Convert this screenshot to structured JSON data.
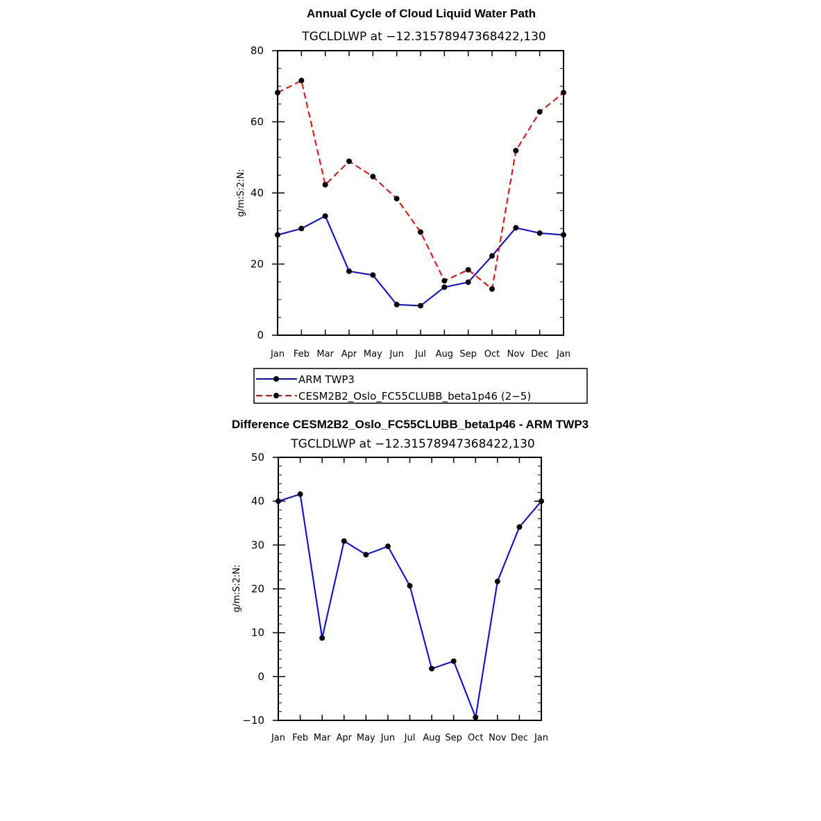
{
  "chart_data": [
    {
      "type": "line",
      "title": "Annual Cycle of Cloud Liquid Water Path",
      "subtitle": "TGCLDLWP at −12.31578947368422,130",
      "ylabel": "g/m:S:2:N:",
      "xlabel": "",
      "categories": [
        "Jan",
        "Feb",
        "Mar",
        "Apr",
        "May",
        "Jun",
        "Jul",
        "Aug",
        "Sep",
        "Oct",
        "Nov",
        "Dec",
        "Jan"
      ],
      "yticks": [
        "0",
        "20",
        "40",
        "60",
        "80"
      ],
      "ylim": [
        0,
        80
      ],
      "series": [
        {
          "name": "ARM TWP3",
          "color": "#0000ff",
          "dash": "solid",
          "values": [
            28.2,
            30.0,
            33.5,
            18.0,
            16.9,
            8.6,
            8.3,
            13.5,
            14.9,
            22.3,
            30.2,
            28.7,
            28.2
          ]
        },
        {
          "name": "CESM2B2_Oslo_FC55CLUBB_beta1p46 (2−5)",
          "color": "#ff0000",
          "dash": "dashed",
          "values": [
            68.2,
            71.6,
            42.3,
            48.9,
            44.6,
            38.4,
            29.0,
            15.3,
            18.4,
            13.0,
            51.9,
            62.8,
            68.2
          ]
        }
      ],
      "legend_position": "bottom"
    },
    {
      "type": "line",
      "title": "Difference CESM2B2_Oslo_FC55CLUBB_beta1p46 - ARM TWP3",
      "subtitle": "TGCLDLWP at −12.31578947368422,130",
      "ylabel": "g/m:S:2:N:",
      "xlabel": "",
      "categories": [
        "Jan",
        "Feb",
        "Mar",
        "Apr",
        "May",
        "Jun",
        "Jul",
        "Aug",
        "Sep",
        "Oct",
        "Nov",
        "Dec",
        "Jan"
      ],
      "yticks": [
        "−10",
        "0",
        "10",
        "20",
        "30",
        "40",
        "50"
      ],
      "ylim": [
        -10,
        50
      ],
      "series": [
        {
          "name": "",
          "color": "#0000ff",
          "dash": "solid",
          "values": [
            40.0,
            41.6,
            8.8,
            30.9,
            27.8,
            29.7,
            20.7,
            1.8,
            3.5,
            -9.3,
            21.7,
            34.1,
            40.0
          ]
        }
      ]
    }
  ]
}
